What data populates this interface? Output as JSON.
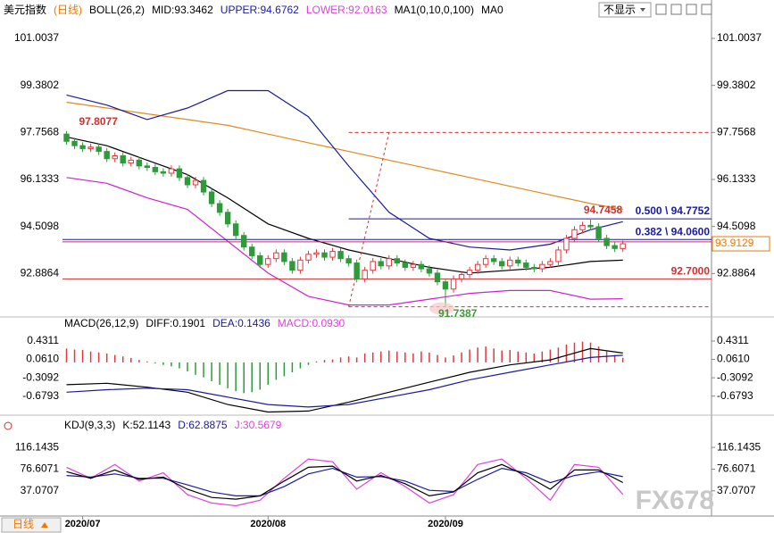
{
  "header": {
    "button": "不显示",
    "period_button": "日线",
    "watermark": "FX678"
  },
  "chart_data": [
    {
      "type": "candlestick",
      "legend": [
        {
          "text": "美元指数",
          "color": "#000000"
        },
        {
          "text": "(日线)",
          "color": "#f07800"
        },
        {
          "text": "BOLL(26,2)",
          "color": "#000000"
        },
        {
          "text": "MID:93.3462",
          "color": "#000000"
        },
        {
          "text": "UPPER:94.6762",
          "color": "#1a1aa0"
        },
        {
          "text": "LOWER:92.0163",
          "color": "#e040e0"
        },
        {
          "text": "MA1(0,10,0,100)",
          "color": "#000000"
        },
        {
          "text": "MA0",
          "color": "#000000"
        }
      ],
      "xlim": [
        -0.5,
        80
      ],
      "ylim": [
        91.48,
        101.65
      ],
      "yticks": [
        101.0037,
        99.3802,
        97.7568,
        96.1333,
        94.5098,
        92.8864
      ],
      "up_color": "#e0383e",
      "down_color": "#2f9a3a",
      "open": [
        97.7,
        97.45,
        97.3,
        97.2,
        97.25,
        97.1,
        96.85,
        96.95,
        96.7,
        96.8,
        96.6,
        96.55,
        96.4,
        96.35,
        96.5,
        96.2,
        95.95,
        96.1,
        95.7,
        95.3,
        95.0,
        94.6,
        94.2,
        93.8,
        93.5,
        93.2,
        93.4,
        93.6,
        93.3,
        93.0,
        93.35,
        93.55,
        93.6,
        93.45,
        93.65,
        93.4,
        93.25,
        92.7,
        93.0,
        93.3,
        93.15,
        93.4,
        93.25,
        93.1,
        93.2,
        93.05,
        92.9,
        92.6,
        92.35,
        92.7,
        92.85,
        93.0,
        93.2,
        93.4,
        93.3,
        93.15,
        93.35,
        93.25,
        93.1,
        93.05,
        93.2,
        93.3,
        93.7,
        94.1,
        94.4,
        94.55,
        94.5,
        94.1,
        93.85,
        93.75
      ],
      "high": [
        97.8077,
        97.57,
        97.42,
        97.37,
        97.37,
        97.22,
        97.07,
        97.07,
        96.92,
        96.92,
        96.72,
        96.67,
        96.52,
        96.62,
        96.62,
        96.32,
        96.22,
        96.22,
        95.82,
        95.42,
        95.12,
        94.72,
        94.32,
        93.92,
        93.62,
        93.52,
        93.72,
        93.72,
        93.42,
        93.47,
        93.67,
        93.72,
        93.72,
        93.77,
        93.77,
        93.52,
        93.37,
        93.12,
        93.42,
        93.42,
        93.52,
        93.52,
        93.37,
        93.32,
        93.32,
        93.17,
        93.02,
        92.72,
        92.82,
        92.97,
        93.12,
        93.32,
        93.52,
        93.52,
        93.42,
        93.47,
        93.47,
        93.37,
        93.22,
        93.32,
        93.42,
        93.82,
        94.22,
        94.52,
        94.67,
        94.7458,
        94.62,
        94.22,
        93.97,
        94.03
      ],
      "low": [
        97.33,
        97.18,
        97.08,
        97.08,
        96.98,
        96.73,
        96.73,
        96.58,
        96.58,
        96.48,
        96.43,
        96.28,
        96.23,
        96.23,
        96.08,
        95.83,
        95.83,
        95.58,
        95.18,
        94.88,
        94.48,
        94.08,
        93.68,
        93.38,
        93.08,
        93.08,
        93.28,
        93.18,
        92.88,
        92.88,
        93.23,
        93.43,
        93.33,
        93.33,
        93.28,
        93.13,
        92.58,
        92.58,
        92.88,
        93.03,
        93.03,
        93.13,
        92.98,
        92.98,
        92.93,
        92.78,
        92.48,
        91.7387,
        92.23,
        92.58,
        92.73,
        92.88,
        93.08,
        93.18,
        93.03,
        93.03,
        93.13,
        92.98,
        92.93,
        92.93,
        93.08,
        93.18,
        93.58,
        93.98,
        94.28,
        94.38,
        93.98,
        93.73,
        93.63,
        93.63
      ],
      "close": [
        97.45,
        97.3,
        97.2,
        97.25,
        97.1,
        96.85,
        96.95,
        96.7,
        96.8,
        96.6,
        96.55,
        96.4,
        96.35,
        96.5,
        96.2,
        95.95,
        96.1,
        95.7,
        95.3,
        95.0,
        94.6,
        94.2,
        93.8,
        93.5,
        93.2,
        93.4,
        93.6,
        93.3,
        93.0,
        93.35,
        93.55,
        93.6,
        93.45,
        93.65,
        93.4,
        93.25,
        92.7,
        93.0,
        93.3,
        93.15,
        93.4,
        93.25,
        93.1,
        93.2,
        93.05,
        92.9,
        92.6,
        92.35,
        92.7,
        92.85,
        93.0,
        93.2,
        93.4,
        93.3,
        93.15,
        93.35,
        93.25,
        93.1,
        93.05,
        93.2,
        93.3,
        93.7,
        94.1,
        94.4,
        94.55,
        94.5,
        94.1,
        93.85,
        93.75,
        93.9129
      ],
      "series": [
        {
          "color": "#e08a1e",
          "x": [
            0,
            5,
            10,
            15,
            20,
            25,
            30,
            35,
            40,
            45,
            50,
            55,
            60,
            65,
            69
          ],
          "values": [
            98.8,
            98.6,
            98.4,
            98.2,
            98.0,
            97.7,
            97.4,
            97.1,
            96.8,
            96.5,
            96.2,
            95.9,
            95.6,
            95.3,
            95.1
          ]
        },
        {
          "color": "#1a1aa0",
          "x": [
            0,
            5,
            10,
            15,
            20,
            25,
            30,
            35,
            40,
            45,
            50,
            55,
            60,
            65,
            69
          ],
          "values": [
            99.05,
            98.7,
            98.2,
            98.6,
            99.2,
            99.2,
            98.3,
            96.6,
            95.0,
            94.1,
            93.8,
            93.7,
            93.9,
            94.4,
            94.6762
          ]
        },
        {
          "color": "#000000",
          "x": [
            0,
            5,
            10,
            15,
            20,
            25,
            30,
            35,
            40,
            45,
            50,
            55,
            60,
            65,
            69
          ],
          "values": [
            97.6,
            97.3,
            96.8,
            96.3,
            95.5,
            94.6,
            94.1,
            93.7,
            93.4,
            93.1,
            92.9,
            93.0,
            93.1,
            93.3,
            93.3462
          ]
        },
        {
          "color": "#d020d0",
          "x": [
            0,
            5,
            10,
            15,
            20,
            25,
            30,
            35,
            40,
            45,
            50,
            55,
            60,
            65,
            69
          ],
          "values": [
            96.2,
            96.0,
            95.5,
            95.1,
            94.0,
            92.9,
            92.1,
            91.8,
            91.8,
            92.0,
            92.2,
            92.3,
            92.3,
            92.0,
            92.0163
          ]
        }
      ],
      "trendline": {
        "color": "#d03030",
        "x": [
          35,
          40
        ],
        "values": [
          91.7387,
          97.7568
        ]
      },
      "levels": [
        {
          "value": 97.7568,
          "color": "#d03030",
          "dashed": true,
          "anchored": true
        },
        {
          "value": 94.7752,
          "label": "0.500 \\ 94.7752",
          "color": "#1a1aa0",
          "dashed": false,
          "anchored": true
        },
        {
          "value": 94.06,
          "label": "0.382 \\ 94.0600",
          "color": "#1a1aa0",
          "dashed": false,
          "anchored": false
        },
        {
          "value": 93.98,
          "color": "#d03030",
          "dashed": false,
          "anchored": false
        },
        {
          "value": 92.7,
          "label": "92.7000",
          "color": "#d03030",
          "dashed": false,
          "anchored": false
        },
        {
          "value": 91.7387,
          "color": "#d03030",
          "dashed": true,
          "anchored": true
        }
      ],
      "point_labels": [
        {
          "index": 0,
          "value": 97.8077,
          "color": "#d03030"
        },
        {
          "index": 65,
          "value": 94.7458,
          "color": "#d03030"
        },
        {
          "index": 47,
          "value": 91.7387,
          "color": "#3a9a3a"
        }
      ],
      "last_price": {
        "value": 93.9129,
        "color": "#f07800"
      }
    },
    {
      "type": "macd",
      "legend": [
        {
          "text": "MACD(26,12,9)",
          "color": "#000000"
        },
        {
          "text": "DIFF:0.1901",
          "color": "#000000"
        },
        {
          "text": "DEA:0.1436",
          "color": "#1a1aa0"
        },
        {
          "text": "MACD:0.0930",
          "color": "#e040e0"
        }
      ],
      "xlim": [
        -0.5,
        80
      ],
      "ylim": [
        -1.0273,
        0.6466
      ],
      "yticks": [
        0.4311,
        {
          "value": 0.061,
          "label": "0.0610"
        },
        -0.3092,
        -0.6793
      ],
      "pos_color": "#e0383e",
      "neg_color": "#2f9a3a",
      "values": [
        0.28,
        0.26,
        0.25,
        0.22,
        0.2,
        0.18,
        0.15,
        0.12,
        0.09,
        0.05,
        0.02,
        -0.02,
        -0.05,
        -0.08,
        -0.12,
        -0.18,
        -0.25,
        -0.3,
        -0.38,
        -0.45,
        -0.52,
        -0.58,
        -0.62,
        -0.6,
        -0.55,
        -0.45,
        -0.35,
        -0.28,
        -0.2,
        -0.12,
        -0.05,
        0.02,
        0.05,
        0.06,
        0.1,
        0.12,
        0.1,
        0.18,
        0.2,
        0.22,
        0.24,
        0.22,
        0.2,
        0.18,
        0.22,
        0.2,
        0.15,
        0.1,
        0.14,
        0.2,
        0.26,
        0.3,
        0.32,
        0.28,
        0.24,
        0.25,
        0.22,
        0.2,
        0.18,
        0.22,
        0.26,
        0.3,
        0.36,
        0.4,
        0.42,
        0.4,
        0.32,
        0.22,
        0.15,
        0.093
      ],
      "series": [
        {
          "color": "#000000",
          "x": [
            0,
            5,
            10,
            15,
            20,
            25,
            30,
            35,
            40,
            45,
            50,
            55,
            60,
            65,
            69
          ],
          "values": [
            -0.45,
            -0.42,
            -0.5,
            -0.6,
            -0.85,
            -1.0,
            -0.98,
            -0.8,
            -0.6,
            -0.4,
            -0.2,
            -0.05,
            0.05,
            0.28,
            0.1901
          ]
        },
        {
          "color": "#1a1aa0",
          "x": [
            0,
            5,
            10,
            15,
            20,
            25,
            30,
            35,
            40,
            45,
            50,
            55,
            60,
            65,
            69
          ],
          "values": [
            -0.6,
            -0.55,
            -0.52,
            -0.55,
            -0.7,
            -0.85,
            -0.9,
            -0.85,
            -0.7,
            -0.55,
            -0.35,
            -0.2,
            -0.05,
            0.1,
            0.1436
          ]
        }
      ]
    },
    {
      "type": "line",
      "legend": [
        {
          "text": "KDJ(9,3,3)",
          "color": "#000000"
        },
        {
          "text": "K:52.1143",
          "color": "#000000"
        },
        {
          "text": "D:62.8875",
          "color": "#1a1aa0"
        },
        {
          "text": "J:30.5679",
          "color": "#e040e0"
        }
      ],
      "xlim": [
        -0.5,
        80
      ],
      "ylim": [
        -3.88,
        147.2
      ],
      "yticks": [
        116.1435,
        76.6071,
        37.0707
      ],
      "xticks": [
        {
          "value": 2,
          "label": "2020/07"
        },
        {
          "value": 25,
          "label": "2020/08"
        },
        {
          "value": 47,
          "label": "2020/09"
        }
      ],
      "series": [
        {
          "color": "#e040e0",
          "x": [
            0,
            3,
            6,
            9,
            12,
            15,
            18,
            21,
            24,
            27,
            30,
            33,
            36,
            39,
            42,
            45,
            48,
            51,
            54,
            57,
            60,
            63,
            66,
            69
          ],
          "values": [
            80,
            60,
            85,
            55,
            70,
            30,
            15,
            10,
            20,
            60,
            95,
            90,
            40,
            70,
            45,
            15,
            30,
            85,
            95,
            60,
            20,
            85,
            80,
            30.5679
          ]
        },
        {
          "color": "#1a1aa0",
          "x": [
            0,
            3,
            6,
            9,
            12,
            15,
            18,
            21,
            24,
            27,
            30,
            33,
            36,
            39,
            42,
            45,
            48,
            51,
            54,
            57,
            60,
            63,
            66,
            69
          ],
          "values": [
            65,
            62,
            68,
            60,
            60,
            48,
            35,
            28,
            28,
            45,
            68,
            78,
            62,
            63,
            55,
            38,
            36,
            58,
            78,
            70,
            52,
            65,
            72,
            62.8875
          ]
        },
        {
          "color": "#000000",
          "x": [
            0,
            3,
            6,
            9,
            12,
            15,
            18,
            21,
            24,
            27,
            30,
            33,
            36,
            39,
            42,
            45,
            48,
            51,
            54,
            57,
            60,
            63,
            66,
            69
          ],
          "values": [
            72,
            60,
            75,
            58,
            62,
            40,
            25,
            22,
            28,
            55,
            80,
            82,
            55,
            65,
            50,
            28,
            35,
            70,
            85,
            65,
            40,
            75,
            75,
            52.1143
          ]
        }
      ]
    }
  ]
}
